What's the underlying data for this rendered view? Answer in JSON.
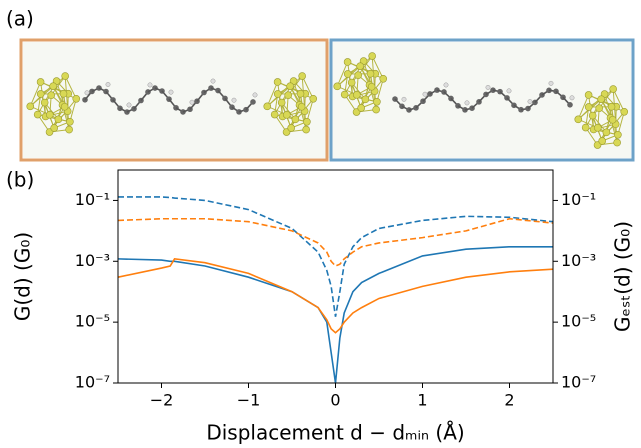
{
  "panel_labels": [
    "(a)",
    "(b)"
  ],
  "chart_data": {
    "type": "line",
    "yscale": "log",
    "grid": false,
    "xlabel": "Displacement d − dₘᵢₙ (Å)",
    "ylabel": "G(d) (G₀)",
    "y2label": "Gₑₛₜ(d) (G₀)",
    "xlim": [
      -2.5,
      2.5
    ],
    "xticks": [
      {
        "value": -2,
        "label": "−2"
      },
      {
        "value": -1,
        "label": "−1"
      },
      0,
      1,
      2
    ],
    "ylim": [
      1e-07,
      1
    ],
    "yticks": [
      {
        "value": 1e-07,
        "label": "10⁻⁷"
      },
      {
        "value": 1e-05,
        "label": "10⁻⁵"
      },
      {
        "value": 0.001,
        "label": "10⁻³"
      },
      {
        "value": 0.1,
        "label": "10⁻¹"
      }
    ],
    "y2lim": [
      1e-07,
      1
    ],
    "y2ticks": [
      {
        "value": 1e-07,
        "label": "10⁻⁷"
      },
      {
        "value": 1e-05,
        "label": "10⁻⁵"
      },
      {
        "value": 0.001,
        "label": "10⁻³"
      },
      {
        "value": 0.1,
        "label": "10⁻¹"
      }
    ],
    "x": [
      -2.5,
      -2.0,
      -1.9,
      -1.85,
      -1.5,
      -1.0,
      -0.5,
      -0.2,
      -0.1,
      -0.05,
      0,
      0.05,
      0.1,
      0.2,
      0.3,
      0.5,
      1.0,
      1.5,
      2.0,
      2.5
    ],
    "series": [
      {
        "color": "#1f77b4",
        "dash": false,
        "axis": "y",
        "values": [
          0.0012,
          0.0011,
          0.001,
          0.001,
          0.0007,
          0.0003,
          0.0001,
          3e-05,
          1e-05,
          1e-06,
          1e-07,
          3e-06,
          2e-05,
          0.0001,
          0.0002,
          0.0004,
          0.0015,
          0.0025,
          0.003,
          0.003
        ]
      },
      {
        "color": "#ff7f0e",
        "dash": false,
        "axis": "y",
        "values": [
          0.0003,
          0.0006,
          0.0007,
          0.0012,
          0.0009,
          0.0004,
          0.0001,
          3e-05,
          1.2e-05,
          6e-06,
          4.5e-06,
          6e-06,
          1e-05,
          2e-05,
          3e-05,
          6e-05,
          0.00015,
          0.0003,
          0.00045,
          0.00055
        ]
      },
      {
        "color": "#1f77b4",
        "dash": true,
        "axis": "y2",
        "values": [
          0.13,
          0.13,
          0.125,
          0.12,
          0.1,
          0.05,
          0.012,
          0.002,
          0.0005,
          0.00015,
          1.5e-05,
          0.0001,
          0.0008,
          0.003,
          0.006,
          0.012,
          0.022,
          0.03,
          0.028,
          0.02
        ]
      },
      {
        "color": "#ff7f0e",
        "dash": true,
        "axis": "y2",
        "values": [
          0.022,
          0.025,
          0.025,
          0.025,
          0.025,
          0.02,
          0.01,
          0.004,
          0.002,
          0.001,
          0.0007,
          0.0008,
          0.0012,
          0.002,
          0.003,
          0.004,
          0.006,
          0.01,
          0.025,
          0.018
        ]
      }
    ]
  }
}
